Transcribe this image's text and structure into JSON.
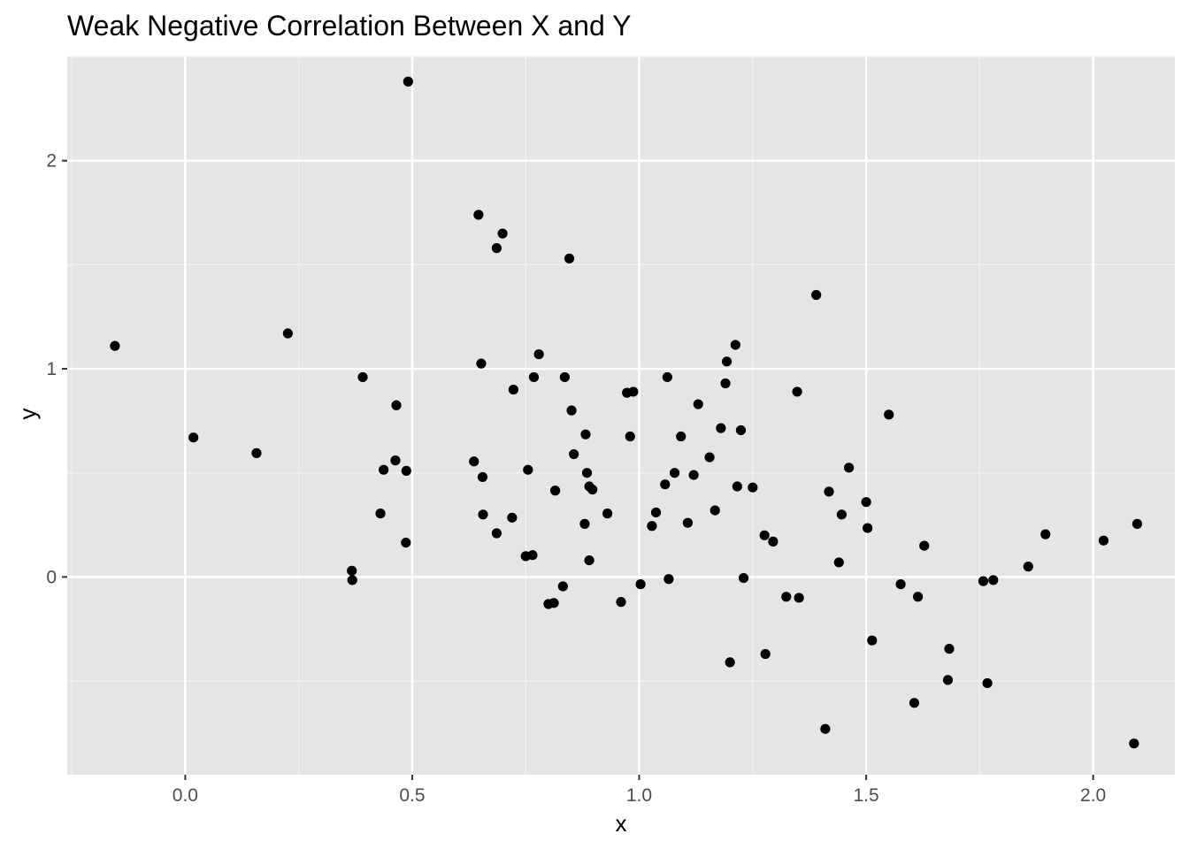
{
  "chart_data": {
    "type": "scatter",
    "title": "Weak Negative Correlation Between X and Y",
    "xlabel": "x",
    "ylabel": "y",
    "xlim": [
      -0.26,
      2.18
    ],
    "ylim": [
      -0.95,
      2.5
    ],
    "x_ticks": [
      0.0,
      0.5,
      1.0,
      1.5,
      2.0
    ],
    "x_tick_labels": [
      "0.0",
      "0.5",
      "1.0",
      "1.5",
      "2.0"
    ],
    "y_ticks": [
      0,
      1,
      2
    ],
    "y_tick_labels": [
      "0",
      "1",
      "2"
    ],
    "grid": true,
    "legend": "none",
    "colors": {
      "panel_background": "#e5e5e5",
      "grid_major": "#ffffff",
      "grid_minor": "#f2f2f2",
      "points": "#000000",
      "tick_text": "#4d4d4d"
    },
    "points": [
      {
        "x": -0.155,
        "y": 1.11
      },
      {
        "x": 0.018,
        "y": 0.67
      },
      {
        "x": 0.157,
        "y": 0.595
      },
      {
        "x": 0.226,
        "y": 1.17
      },
      {
        "x": 0.367,
        "y": 0.03
      },
      {
        "x": 0.368,
        "y": -0.015
      },
      {
        "x": 0.391,
        "y": 0.96
      },
      {
        "x": 0.43,
        "y": 0.305
      },
      {
        "x": 0.437,
        "y": 0.515
      },
      {
        "x": 0.463,
        "y": 0.56
      },
      {
        "x": 0.465,
        "y": 0.825
      },
      {
        "x": 0.486,
        "y": 0.165
      },
      {
        "x": 0.487,
        "y": 0.51
      },
      {
        "x": 0.491,
        "y": 2.38
      },
      {
        "x": 0.636,
        "y": 0.555
      },
      {
        "x": 0.646,
        "y": 1.74
      },
      {
        "x": 0.652,
        "y": 1.025
      },
      {
        "x": 0.655,
        "y": 0.48
      },
      {
        "x": 0.656,
        "y": 0.3
      },
      {
        "x": 0.686,
        "y": 1.58
      },
      {
        "x": 0.686,
        "y": 0.21
      },
      {
        "x": 0.699,
        "y": 1.65
      },
      {
        "x": 0.72,
        "y": 0.285
      },
      {
        "x": 0.723,
        "y": 0.9
      },
      {
        "x": 0.75,
        "y": 0.1
      },
      {
        "x": 0.755,
        "y": 0.515
      },
      {
        "x": 0.765,
        "y": 0.105
      },
      {
        "x": 0.768,
        "y": 0.96
      },
      {
        "x": 0.779,
        "y": 1.07
      },
      {
        "x": 0.8,
        "y": -0.13
      },
      {
        "x": 0.812,
        "y": -0.125
      },
      {
        "x": 0.815,
        "y": 0.415
      },
      {
        "x": 0.832,
        "y": -0.045
      },
      {
        "x": 0.836,
        "y": 0.96
      },
      {
        "x": 0.846,
        "y": 1.53
      },
      {
        "x": 0.851,
        "y": 0.8
      },
      {
        "x": 0.856,
        "y": 0.59
      },
      {
        "x": 0.88,
        "y": 0.255
      },
      {
        "x": 0.882,
        "y": 0.685
      },
      {
        "x": 0.885,
        "y": 0.5
      },
      {
        "x": 0.89,
        "y": 0.08
      },
      {
        "x": 0.89,
        "y": 0.435
      },
      {
        "x": 0.897,
        "y": 0.42
      },
      {
        "x": 0.93,
        "y": 0.305
      },
      {
        "x": 0.96,
        "y": -0.12
      },
      {
        "x": 0.973,
        "y": 0.885
      },
      {
        "x": 0.98,
        "y": 0.675
      },
      {
        "x": 0.987,
        "y": 0.89
      },
      {
        "x": 1.003,
        "y": -0.035
      },
      {
        "x": 1.028,
        "y": 0.245
      },
      {
        "x": 1.037,
        "y": 0.31
      },
      {
        "x": 1.057,
        "y": 0.445
      },
      {
        "x": 1.062,
        "y": 0.96
      },
      {
        "x": 1.065,
        "y": -0.01
      },
      {
        "x": 1.078,
        "y": 0.5
      },
      {
        "x": 1.092,
        "y": 0.675
      },
      {
        "x": 1.107,
        "y": 0.26
      },
      {
        "x": 1.12,
        "y": 0.49
      },
      {
        "x": 1.13,
        "y": 0.83
      },
      {
        "x": 1.155,
        "y": 0.575
      },
      {
        "x": 1.167,
        "y": 0.32
      },
      {
        "x": 1.18,
        "y": 0.715
      },
      {
        "x": 1.19,
        "y": 0.93
      },
      {
        "x": 1.193,
        "y": 1.035
      },
      {
        "x": 1.2,
        "y": -0.41
      },
      {
        "x": 1.212,
        "y": 1.115
      },
      {
        "x": 1.216,
        "y": 0.435
      },
      {
        "x": 1.224,
        "y": 0.705
      },
      {
        "x": 1.23,
        "y": -0.005
      },
      {
        "x": 1.25,
        "y": 0.43
      },
      {
        "x": 1.276,
        "y": 0.2
      },
      {
        "x": 1.278,
        "y": -0.37
      },
      {
        "x": 1.295,
        "y": 0.17
      },
      {
        "x": 1.324,
        "y": -0.095
      },
      {
        "x": 1.348,
        "y": 0.89
      },
      {
        "x": 1.352,
        "y": -0.1
      },
      {
        "x": 1.39,
        "y": 1.355
      },
      {
        "x": 1.41,
        "y": -0.73
      },
      {
        "x": 1.418,
        "y": 0.41
      },
      {
        "x": 1.44,
        "y": 0.07
      },
      {
        "x": 1.446,
        "y": 0.3
      },
      {
        "x": 1.462,
        "y": 0.525
      },
      {
        "x": 1.5,
        "y": 0.36
      },
      {
        "x": 1.503,
        "y": 0.235
      },
      {
        "x": 1.513,
        "y": -0.305
      },
      {
        "x": 1.55,
        "y": 0.78
      },
      {
        "x": 1.576,
        "y": -0.035
      },
      {
        "x": 1.606,
        "y": -0.605
      },
      {
        "x": 1.614,
        "y": -0.095
      },
      {
        "x": 1.628,
        "y": 0.15
      },
      {
        "x": 1.68,
        "y": -0.495
      },
      {
        "x": 1.683,
        "y": -0.345
      },
      {
        "x": 1.758,
        "y": -0.02
      },
      {
        "x": 1.767,
        "y": -0.51
      },
      {
        "x": 1.78,
        "y": -0.015
      },
      {
        "x": 1.857,
        "y": 0.05
      },
      {
        "x": 1.895,
        "y": 0.205
      },
      {
        "x": 2.023,
        "y": 0.175
      },
      {
        "x": 2.09,
        "y": -0.8
      },
      {
        "x": 2.097,
        "y": 0.255
      }
    ]
  }
}
